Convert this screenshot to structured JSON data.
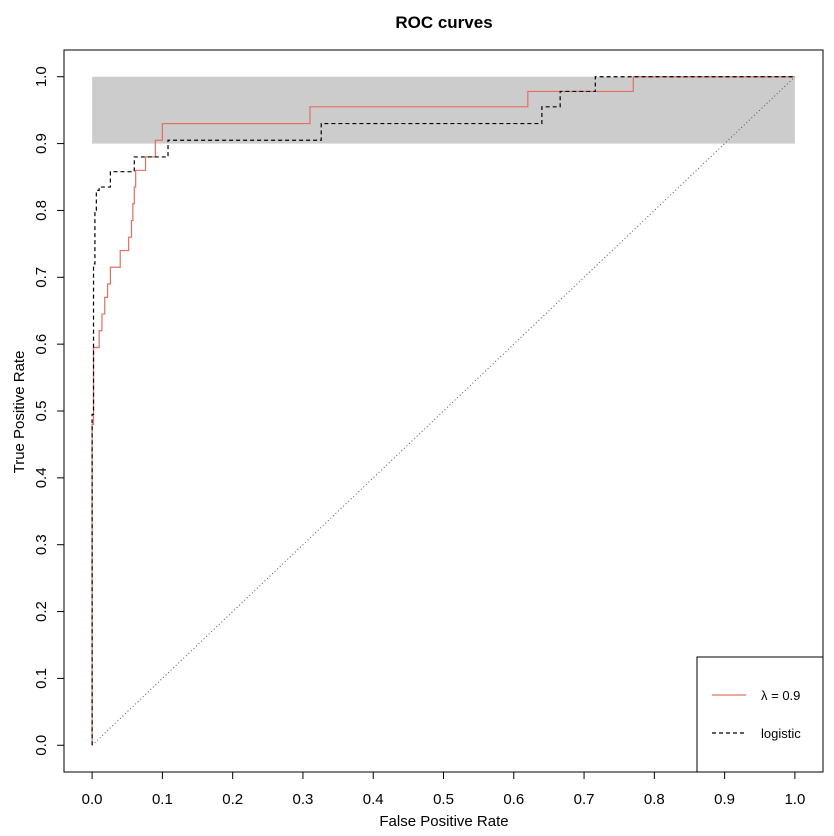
{
  "chart_data": {
    "type": "line",
    "title": "ROC curves",
    "xlabel": "False Positive Rate",
    "ylabel": "True Positive Rate",
    "xlim": [
      -0.04,
      1.04
    ],
    "ylim": [
      -0.04,
      1.04
    ],
    "xticks": [
      0.0,
      0.1,
      0.2,
      0.3,
      0.4,
      0.5,
      0.6,
      0.7,
      0.8,
      0.9,
      1.0
    ],
    "yticks": [
      0.0,
      0.1,
      0.2,
      0.3,
      0.4,
      0.5,
      0.6,
      0.7,
      0.8,
      0.9,
      1.0
    ],
    "xtick_labels": [
      "0.0",
      "0.1",
      "0.2",
      "0.3",
      "0.4",
      "0.5",
      "0.6",
      "0.7",
      "0.8",
      "0.9",
      "1.0"
    ],
    "ytick_labels": [
      "0.0",
      "0.1",
      "0.2",
      "0.3",
      "0.4",
      "0.5",
      "0.6",
      "0.7",
      "0.8",
      "0.9",
      "1.0"
    ],
    "grid": false,
    "legend_position": "bottom-right",
    "shaded_band": {
      "x": [
        0.0,
        1.0
      ],
      "y": [
        0.9,
        1.0
      ],
      "color": "#cccccc"
    },
    "reference_line": {
      "x": [
        0.0,
        1.0
      ],
      "y": [
        0.0,
        1.0
      ],
      "style": "dotted",
      "color": "#555555"
    },
    "series": [
      {
        "name": "λ = 0.9",
        "color": "#e07060",
        "style": "solid",
        "step": true,
        "x": [
          0.0,
          0.0,
          0.002,
          0.002,
          0.004,
          0.004,
          0.01,
          0.01,
          0.014,
          0.014,
          0.018,
          0.018,
          0.022,
          0.022,
          0.026,
          0.026,
          0.04,
          0.04,
          0.052,
          0.052,
          0.056,
          0.056,
          0.058,
          0.058,
          0.06,
          0.06,
          0.062,
          0.062,
          0.068,
          0.068,
          0.076,
          0.076,
          0.09,
          0.09,
          0.1,
          0.1,
          0.31,
          0.31,
          0.62,
          0.62,
          0.77,
          0.77,
          1.0
        ],
        "y": [
          0.0,
          0.48,
          0.48,
          0.595,
          0.595,
          0.595,
          0.595,
          0.62,
          0.62,
          0.645,
          0.645,
          0.67,
          0.67,
          0.69,
          0.69,
          0.715,
          0.715,
          0.74,
          0.74,
          0.76,
          0.76,
          0.785,
          0.785,
          0.81,
          0.81,
          0.835,
          0.835,
          0.86,
          0.86,
          0.86,
          0.86,
          0.88,
          0.88,
          0.905,
          0.905,
          0.93,
          0.93,
          0.955,
          0.955,
          0.978,
          0.978,
          1.0,
          1.0
        ]
      },
      {
        "name": "logistic",
        "color": "#000000",
        "style": "dashed",
        "step": true,
        "x": [
          0.0,
          0.0,
          0.0,
          0.002,
          0.002,
          0.004,
          0.004,
          0.006,
          0.006,
          0.01,
          0.01,
          0.026,
          0.026,
          0.06,
          0.06,
          0.068,
          0.068,
          0.108,
          0.108,
          0.326,
          0.326,
          0.64,
          0.64,
          0.666,
          0.666,
          0.716,
          0.716,
          1.0
        ],
        "y": [
          0.0,
          0.475,
          0.495,
          0.495,
          0.72,
          0.72,
          0.8,
          0.8,
          0.83,
          0.83,
          0.835,
          0.835,
          0.858,
          0.858,
          0.88,
          0.88,
          0.88,
          0.88,
          0.905,
          0.905,
          0.93,
          0.93,
          0.955,
          0.955,
          0.978,
          0.978,
          1.0,
          1.0
        ]
      }
    ]
  }
}
